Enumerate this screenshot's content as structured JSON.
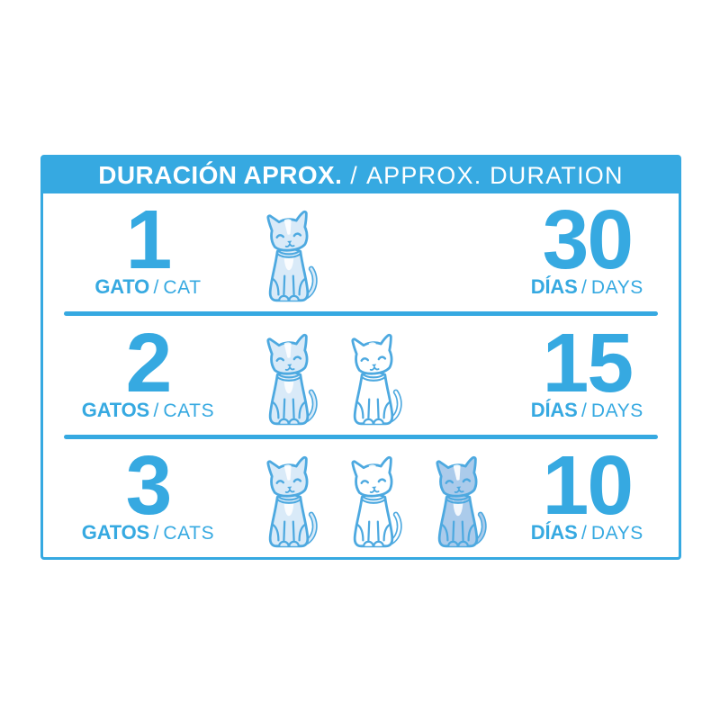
{
  "colors": {
    "brand": "#36A9E1",
    "cat_outline": "#4DA9E0",
    "cat_fill_light": "#D9EAF8",
    "cat_fill_white": "#FFFFFF",
    "cat_fill_medium": "#ABCBEB"
  },
  "header": {
    "title_es": "DURACIÓN APROX.",
    "separator": "/",
    "title_en": "APPROX. DURATION"
  },
  "rows": [
    {
      "count": "1",
      "unit_es": "GATO",
      "separator": "/",
      "unit_en": "CAT",
      "cats": [
        "light"
      ],
      "duration": "30",
      "duration_unit_es": "DÍAS",
      "duration_separator": "/",
      "duration_unit_en": "DAYS"
    },
    {
      "count": "2",
      "unit_es": "GATOS",
      "separator": "/",
      "unit_en": "CATS",
      "cats": [
        "light",
        "white"
      ],
      "duration": "15",
      "duration_unit_es": "DÍAS",
      "duration_separator": "/",
      "duration_unit_en": "DAYS"
    },
    {
      "count": "3",
      "unit_es": "GATOS",
      "separator": "/",
      "unit_en": "CATS",
      "cats": [
        "light",
        "white",
        "medium"
      ],
      "duration": "10",
      "duration_unit_es": "DÍAS",
      "duration_separator": "/",
      "duration_unit_en": "DAYS"
    }
  ]
}
